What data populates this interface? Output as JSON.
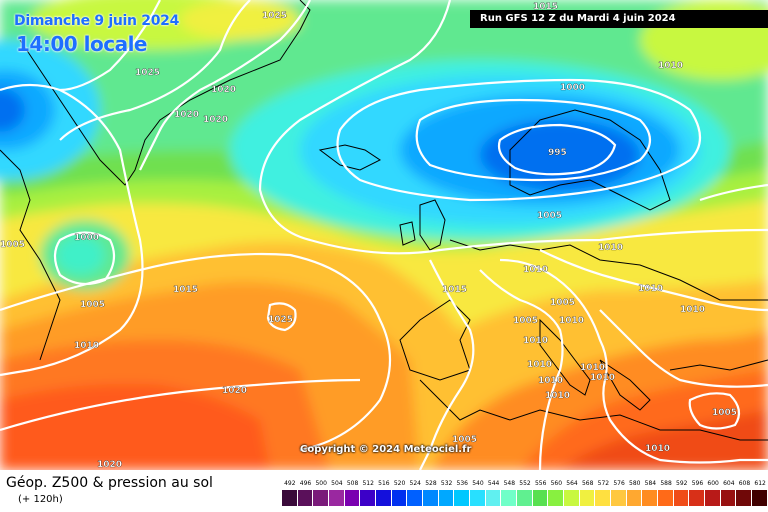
{
  "header": {
    "date": "Dimanche 9 juin 2024",
    "time": "14:00 locale",
    "run": "Run GFS 12 Z du Mardi 4 juin 2024"
  },
  "copyright": "Copyright © 2024 Meteociel.fr",
  "footer": {
    "title": "Géop. Z500 & pression au sol",
    "subtitle": "(+ 120h)"
  },
  "legend": {
    "values": [
      "492",
      "496",
      "500",
      "504",
      "508",
      "512",
      "516",
      "520",
      "524",
      "528",
      "532",
      "536",
      "540",
      "544",
      "548",
      "552",
      "556",
      "560",
      "564",
      "568",
      "572",
      "576",
      "580",
      "584",
      "588",
      "592",
      "596",
      "600",
      "604",
      "608",
      "612"
    ],
    "colors": [
      "#3a0a3a",
      "#5a105a",
      "#7a1a7a",
      "#9a28a0",
      "#7a00b0",
      "#3c00c8",
      "#1410dc",
      "#0030f0",
      "#0060ff",
      "#0088ff",
      "#00a8ff",
      "#00c8ff",
      "#28e0ff",
      "#60f0f0",
      "#70ffc8",
      "#60f090",
      "#58e050",
      "#88f040",
      "#c8f840",
      "#f0f040",
      "#ffe040",
      "#ffc840",
      "#ffa830",
      "#ff8c20",
      "#ff6a18",
      "#f04c18",
      "#d83018",
      "#b81a18",
      "#981010",
      "#700808",
      "#400000"
    ]
  },
  "isobars": [
    "1025",
    "1025",
    "1020",
    "1020",
    "1020",
    "1015",
    "1010",
    "1000",
    "995",
    "1005",
    "1010",
    "1010",
    "1015",
    "1000",
    "1005",
    "1010",
    "1025",
    "1020",
    "1005",
    "1015",
    "1010",
    "1005",
    "1005",
    "1010",
    "1010",
    "1010",
    "1010",
    "1010",
    "1010",
    "1010",
    "1010",
    "1005",
    "1005",
    "1010",
    "1020"
  ]
}
